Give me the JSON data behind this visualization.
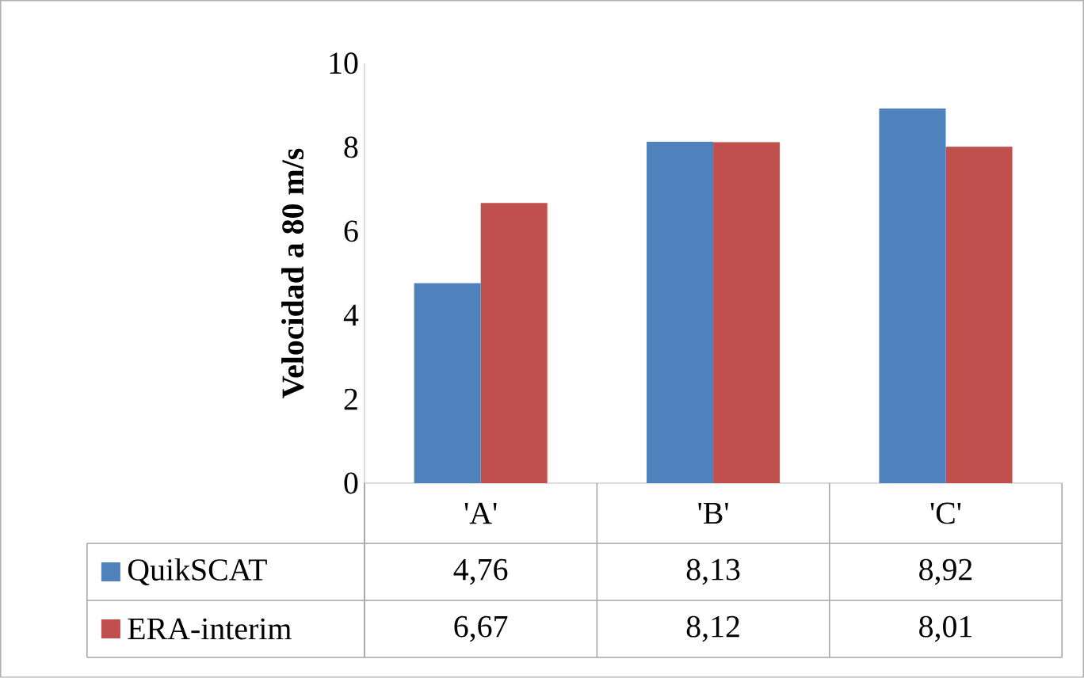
{
  "chart_data": {
    "type": "bar",
    "ylabel": "Velocidad a 80 m/s",
    "categories": [
      "'A'",
      "'B'",
      "'C'"
    ],
    "series": [
      {
        "name": "QuikSCAT",
        "color": "#4f81bd",
        "values": [
          4.76,
          8.13,
          8.92
        ],
        "value_labels": [
          "4,76",
          "8,13",
          "8,92"
        ]
      },
      {
        "name": "ERA-interim",
        "color": "#c0504d",
        "values": [
          6.67,
          8.12,
          8.01
        ],
        "value_labels": [
          "6,67",
          "8,12",
          "8,01"
        ]
      }
    ],
    "ylim": [
      0,
      10
    ],
    "yticks": [
      0,
      2,
      4,
      6,
      8,
      10
    ],
    "grid": false,
    "legend": "bottom"
  }
}
